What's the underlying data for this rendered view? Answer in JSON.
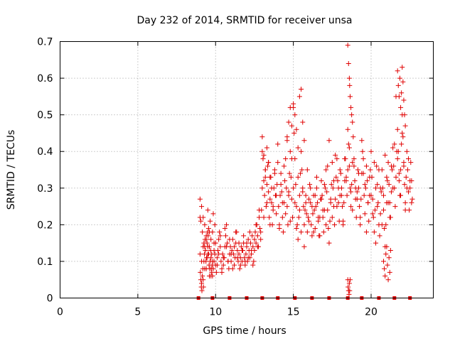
{
  "chart_data": {
    "type": "scatter",
    "title": "Day 232 of 2014, SRMTID for receiver unsa",
    "xlabel": "GPS time / hours",
    "ylabel": "SRMTID / TECUs",
    "xlim": [
      0,
      24
    ],
    "ylim": [
      0,
      0.7
    ],
    "xticks": [
      0,
      5,
      10,
      15,
      20
    ],
    "yticks": [
      0,
      0.1,
      0.2,
      0.3,
      0.4,
      0.5,
      0.6,
      0.7
    ],
    "xtick_labels": [
      "0",
      "5",
      "10",
      "15",
      "20"
    ],
    "ytick_labels": [
      "0",
      "0.1",
      "0.2",
      "0.3",
      "0.4",
      "0.5",
      "0.6",
      "0.7"
    ],
    "grid": true,
    "marker": "+",
    "color": "#e00000",
    "baseline_markers_x": [
      8.9,
      9.8,
      10.9,
      12.0,
      13.0,
      14.0,
      15.1,
      16.2,
      17.3,
      18.5,
      19.4,
      20.5,
      21.5,
      22.5
    ],
    "series": [
      {
        "name": "SRMTID",
        "x": [
          9.0,
          9.02,
          9.05,
          9.08,
          9.1,
          9.12,
          9.15,
          9.18,
          9.2,
          9.22,
          9.25,
          9.28,
          9.3,
          9.32,
          9.35,
          9.38,
          9.4,
          9.42,
          9.45,
          9.48,
          9.5,
          9.52,
          9.55,
          9.58,
          9.6,
          9.62,
          9.65,
          9.68,
          9.7,
          9.72,
          9.75,
          9.78,
          9.8,
          9.85,
          9.9,
          9.95,
          10.0,
          10.05,
          10.1,
          10.15,
          10.2,
          10.25,
          10.3,
          10.35,
          10.4,
          10.45,
          10.5,
          10.55,
          10.6,
          10.65,
          10.7,
          10.75,
          10.8,
          10.85,
          10.9,
          10.95,
          11.0,
          11.05,
          11.1,
          11.15,
          11.2,
          11.25,
          11.3,
          11.35,
          11.4,
          11.45,
          11.5,
          11.55,
          11.6,
          11.65,
          11.7,
          11.75,
          11.8,
          11.85,
          11.9,
          11.95,
          12.0,
          12.05,
          12.1,
          12.15,
          12.2,
          12.25,
          12.3,
          12.35,
          12.4,
          12.45,
          12.5,
          12.55,
          12.6,
          12.65,
          12.7,
          12.75,
          12.8,
          12.85,
          12.9,
          12.95,
          13.0,
          13.05,
          13.1,
          13.15,
          13.2,
          13.25,
          13.3,
          13.35,
          13.4,
          13.45,
          13.5,
          13.55,
          13.6,
          13.65,
          13.7,
          13.75,
          13.8,
          13.85,
          13.9,
          13.95,
          14.0,
          14.05,
          14.1,
          14.15,
          14.2,
          14.25,
          14.3,
          14.35,
          14.4,
          14.45,
          14.5,
          14.55,
          14.6,
          14.65,
          14.7,
          14.75,
          14.8,
          14.85,
          14.9,
          14.95,
          15.0,
          15.05,
          15.1,
          15.15,
          15.2,
          15.25,
          15.3,
          15.35,
          15.4,
          15.45,
          15.5,
          15.55,
          15.6,
          15.65,
          15.7,
          15.75,
          15.8,
          15.85,
          15.9,
          15.95,
          16.0,
          16.05,
          16.1,
          16.15,
          16.2,
          16.25,
          16.3,
          16.35,
          16.4,
          16.45,
          16.5,
          16.55,
          16.6,
          16.65,
          16.7,
          16.75,
          16.8,
          16.85,
          16.9,
          16.95,
          17.0,
          17.05,
          17.1,
          17.15,
          17.2,
          17.25,
          17.3,
          17.35,
          17.4,
          17.45,
          17.5,
          17.55,
          17.6,
          17.65,
          17.7,
          17.75,
          17.8,
          17.85,
          17.9,
          17.95,
          18.0,
          18.05,
          18.1,
          18.15,
          18.2,
          18.25,
          18.3,
          18.35,
          18.4,
          18.45,
          18.5,
          18.55,
          18.6,
          18.65,
          18.7,
          18.75,
          18.8,
          18.85,
          18.9,
          18.95,
          19.0,
          19.05,
          19.1,
          19.15,
          19.2,
          19.25,
          19.3,
          19.35,
          19.4,
          19.45,
          19.5,
          19.55,
          19.6,
          19.65,
          19.7,
          19.75,
          19.8,
          19.85,
          19.9,
          19.95,
          20.0,
          20.05,
          20.1,
          20.15,
          20.2,
          20.25,
          20.3,
          20.35,
          20.4,
          20.45,
          20.5,
          20.55,
          20.6,
          20.65,
          20.7,
          20.75,
          20.8,
          20.85,
          20.9,
          20.95,
          21.0,
          21.05,
          21.1,
          21.15,
          21.2,
          21.25,
          21.3,
          21.35,
          21.4,
          21.45,
          21.5,
          21.55,
          21.6,
          21.65,
          21.7,
          21.75,
          21.8,
          21.85,
          21.9,
          21.95,
          22.0,
          22.05,
          22.1,
          22.15,
          22.2,
          22.25,
          22.3,
          22.35,
          22.4,
          22.45,
          22.5,
          22.55,
          22.6,
          22.65,
          9.0,
          9.1,
          9.2,
          9.3,
          9.4,
          9.5,
          9.6,
          9.7,
          9.8,
          9.9,
          10.0,
          10.1,
          10.2,
          10.3,
          10.4,
          10.5,
          10.6,
          10.7,
          10.8,
          10.9,
          11.0,
          11.1,
          11.2,
          11.3,
          11.4,
          11.5,
          11.6,
          11.7,
          11.8,
          11.9,
          12.0,
          12.1,
          12.2,
          12.3,
          12.4,
          12.5,
          12.6,
          12.7,
          12.8,
          12.9,
          13.0,
          13.1,
          13.2,
          13.3,
          13.4,
          13.5,
          13.6,
          13.7,
          13.8,
          13.9,
          14.0,
          14.1,
          14.2,
          14.3,
          14.4,
          14.5,
          14.6,
          14.7,
          14.8,
          14.9,
          15.0,
          15.1,
          15.2,
          15.3,
          15.4,
          15.5,
          15.6,
          15.7,
          15.8,
          15.9,
          16.0,
          16.1,
          16.2,
          16.3,
          16.4,
          16.5,
          16.6,
          16.7,
          16.8,
          16.9,
          17.0,
          17.1,
          17.2,
          17.3,
          17.4,
          17.5,
          17.6,
          17.7,
          17.8,
          17.9,
          18.0,
          18.1,
          18.2,
          18.3,
          18.4,
          18.5,
          18.6,
          18.7,
          18.8,
          18.9,
          19.0,
          19.1,
          19.2,
          19.3,
          19.4,
          19.5,
          19.6,
          19.7,
          19.8,
          19.9,
          20.0,
          20.1,
          20.2,
          20.3,
          20.4,
          20.5,
          20.6,
          20.7,
          20.8,
          20.9,
          21.0,
          21.1,
          21.2,
          21.3,
          21.4,
          21.5,
          21.6,
          21.7,
          21.8,
          21.9,
          22.0,
          22.1,
          22.2,
          22.3,
          22.4,
          22.5,
          22.6,
          9.0,
          9.05,
          9.1,
          9.15,
          9.2,
          9.25,
          9.3,
          9.35,
          9.4,
          9.45,
          9.5,
          9.55,
          9.6,
          9.65,
          9.7,
          9.75,
          9.8,
          9.85,
          9.9,
          9.95,
          13.0,
          13.1,
          13.2,
          13.3,
          13.4,
          13.5,
          14.6,
          14.7,
          14.8,
          14.9,
          15.0,
          15.1,
          15.2,
          15.3,
          15.4,
          15.5,
          15.6,
          15.7,
          18.5,
          18.52,
          18.55,
          18.58,
          18.6,
          18.62,
          18.65,
          18.5,
          18.55,
          18.6,
          18.62,
          18.65,
          18.7,
          18.75,
          18.8,
          20.8,
          20.85,
          20.9,
          20.95,
          21.0,
          21.05,
          21.1,
          21.15,
          21.2,
          21.25,
          21.7,
          21.75,
          21.8,
          21.85,
          21.9,
          21.95,
          22.0,
          22.05,
          22.1,
          22.15,
          22.2
        ],
        "y": [
          0.12,
          0.07,
          0.05,
          0.03,
          0.04,
          0.02,
          0.06,
          0.08,
          0.05,
          0.03,
          0.1,
          0.12,
          0.14,
          0.16,
          0.13,
          0.1,
          0.08,
          0.11,
          0.15,
          0.18,
          0.14,
          0.17,
          0.12,
          0.09,
          0.06,
          0.08,
          0.1,
          0.13,
          0.11,
          0.08,
          0.07,
          0.09,
          0.06,
          0.08,
          0.1,
          0.12,
          0.09,
          0.07,
          0.11,
          0.13,
          0.16,
          0.18,
          0.14,
          0.1,
          0.08,
          0.12,
          0.09,
          0.11,
          0.14,
          0.17,
          0.2,
          0.15,
          0.1,
          0.08,
          0.12,
          0.14,
          0.1,
          0.13,
          0.16,
          0.12,
          0.09,
          0.11,
          0.15,
          0.18,
          0.13,
          0.1,
          0.12,
          0.08,
          0.11,
          0.14,
          0.1,
          0.13,
          0.15,
          0.11,
          0.09,
          0.12,
          0.14,
          0.1,
          0.16,
          0.13,
          0.11,
          0.15,
          0.12,
          0.17,
          0.14,
          0.1,
          0.13,
          0.18,
          0.15,
          0.2,
          0.17,
          0.14,
          0.22,
          0.19,
          0.16,
          0.24,
          0.3,
          0.38,
          0.32,
          0.28,
          0.35,
          0.25,
          0.31,
          0.36,
          0.29,
          0.22,
          0.27,
          0.33,
          0.26,
          0.2,
          0.24,
          0.3,
          0.35,
          0.28,
          0.23,
          0.31,
          0.37,
          0.25,
          0.2,
          0.28,
          0.34,
          0.29,
          0.22,
          0.18,
          0.26,
          0.32,
          0.38,
          0.3,
          0.25,
          0.2,
          0.28,
          0.34,
          0.4,
          0.33,
          0.27,
          0.22,
          0.3,
          0.45,
          0.38,
          0.31,
          0.25,
          0.2,
          0.16,
          0.22,
          0.28,
          0.34,
          0.4,
          0.35,
          0.3,
          0.25,
          0.2,
          0.24,
          0.28,
          0.23,
          0.18,
          0.22,
          0.27,
          0.31,
          0.26,
          0.2,
          0.17,
          0.23,
          0.28,
          0.24,
          0.19,
          0.25,
          0.3,
          0.26,
          0.21,
          0.17,
          0.22,
          0.27,
          0.32,
          0.28,
          0.22,
          0.18,
          0.24,
          0.3,
          0.35,
          0.29,
          0.24,
          0.19,
          0.15,
          0.21,
          0.26,
          0.31,
          0.37,
          0.3,
          0.25,
          0.2,
          0.27,
          0.33,
          0.38,
          0.32,
          0.26,
          0.21,
          0.28,
          0.34,
          0.3,
          0.25,
          0.2,
          0.26,
          0.32,
          0.38,
          0.33,
          0.28,
          0.35,
          0.42,
          0.36,
          0.3,
          0.25,
          0.31,
          0.37,
          0.44,
          0.38,
          0.32,
          0.27,
          0.22,
          0.29,
          0.35,
          0.3,
          0.25,
          0.2,
          0.27,
          0.34,
          0.4,
          0.34,
          0.28,
          0.23,
          0.3,
          0.36,
          0.32,
          0.26,
          0.21,
          0.28,
          0.35,
          0.4,
          0.33,
          0.27,
          0.22,
          0.18,
          0.24,
          0.3,
          0.36,
          0.31,
          0.26,
          0.2,
          0.17,
          0.23,
          0.29,
          0.35,
          0.3,
          0.24,
          0.19,
          0.14,
          0.2,
          0.26,
          0.32,
          0.37,
          0.31,
          0.26,
          0.22,
          0.29,
          0.35,
          0.41,
          0.36,
          0.3,
          0.25,
          0.33,
          0.4,
          0.46,
          0.4,
          0.34,
          0.28,
          0.35,
          0.42,
          0.5,
          0.44,
          0.37,
          0.31,
          0.26,
          0.33,
          0.4,
          0.35,
          0.29,
          0.24,
          0.3,
          0.37,
          0.32,
          0.27,
          0.22,
          0.1,
          0.14,
          0.08,
          0.16,
          0.12,
          0.18,
          0.06,
          0.1,
          0.13,
          0.15,
          0.09,
          0.12,
          0.17,
          0.07,
          0.11,
          0.19,
          0.14,
          0.1,
          0.16,
          0.12,
          0.08,
          0.14,
          0.18,
          0.11,
          0.15,
          0.09,
          0.13,
          0.17,
          0.1,
          0.15,
          0.11,
          0.18,
          0.13,
          0.09,
          0.16,
          0.2,
          0.14,
          0.24,
          0.18,
          0.4,
          0.22,
          0.33,
          0.26,
          0.37,
          0.2,
          0.3,
          0.25,
          0.34,
          0.28,
          0.42,
          0.19,
          0.31,
          0.26,
          0.36,
          0.23,
          0.44,
          0.29,
          0.21,
          0.38,
          0.52,
          0.26,
          0.19,
          0.33,
          0.24,
          0.18,
          0.29,
          0.14,
          0.26,
          0.35,
          0.21,
          0.3,
          0.25,
          0.18,
          0.28,
          0.33,
          0.22,
          0.17,
          0.27,
          0.24,
          0.31,
          0.2,
          0.36,
          0.43,
          0.27,
          0.22,
          0.32,
          0.39,
          0.25,
          0.3,
          0.35,
          0.28,
          0.21,
          0.38,
          0.32,
          0.46,
          0.41,
          0.29,
          0.24,
          0.36,
          0.3,
          0.27,
          0.34,
          0.22,
          0.43,
          0.38,
          0.31,
          0.18,
          0.26,
          0.33,
          0.28,
          0.23,
          0.37,
          0.15,
          0.25,
          0.35,
          0.3,
          0.2,
          0.28,
          0.39,
          0.33,
          0.26,
          0.22,
          0.36,
          0.3,
          0.42,
          0.55,
          0.38,
          0.32,
          0.28,
          0.45,
          0.36,
          0.24,
          0.3,
          0.38,
          0.32,
          0.26,
          0.27,
          0.21,
          0.25,
          0.18,
          0.22,
          0.15,
          0.2,
          0.13,
          0.17,
          0.11,
          0.24,
          0.19,
          0.14,
          0.21,
          0.16,
          0.12,
          0.18,
          0.23,
          0.15,
          0.2,
          0.44,
          0.39,
          0.35,
          0.41,
          0.37,
          0.33,
          0.43,
          0.48,
          0.52,
          0.47,
          0.53,
          0.5,
          0.46,
          0.41,
          0.55,
          0.57,
          0.48,
          0.43,
          0.05,
          0.03,
          0.02,
          0.01,
          0.04,
          0.02,
          0.05,
          0.69,
          0.64,
          0.6,
          0.58,
          0.55,
          0.52,
          0.5,
          0.48,
          0.1,
          0.08,
          0.06,
          0.12,
          0.14,
          0.09,
          0.05,
          0.11,
          0.07,
          0.13,
          0.62,
          0.58,
          0.55,
          0.6,
          0.52,
          0.56,
          0.63,
          0.59,
          0.54,
          0.5,
          0.47
        ]
      }
    ]
  }
}
